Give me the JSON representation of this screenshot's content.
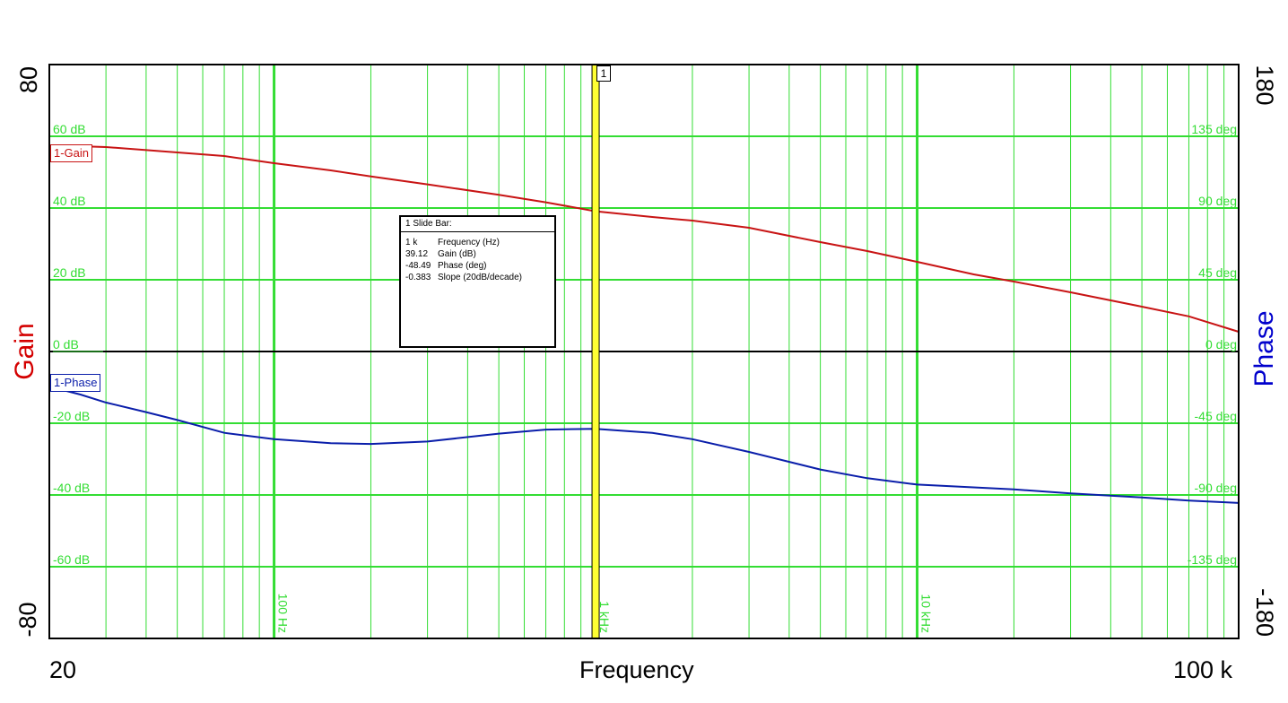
{
  "chart_data": {
    "type": "line",
    "xlabel": "Frequency",
    "x_scale": "log",
    "xlim": [
      20,
      100000
    ],
    "x_end_labels": [
      "20",
      "100 k"
    ],
    "x_decade_labels": [
      {
        "value": 100,
        "label": "100 Hz"
      },
      {
        "value": 1000,
        "label": "1 kHz"
      },
      {
        "value": 10000,
        "label": "10 kHz"
      }
    ],
    "left_axis": {
      "label": "Gain",
      "color": "#d40000",
      "ylim": [
        -80,
        80
      ],
      "end_labels": [
        "80",
        "-80"
      ],
      "ticks": [
        {
          "value": 60,
          "label": "60 dB"
        },
        {
          "value": 40,
          "label": "40 dB"
        },
        {
          "value": 20,
          "label": "20 dB"
        },
        {
          "value": 0,
          "label": "0 dB"
        },
        {
          "value": -20,
          "label": "-20 dB"
        },
        {
          "value": -40,
          "label": "-40 dB"
        },
        {
          "value": -60,
          "label": "-60 dB"
        }
      ]
    },
    "right_axis": {
      "label": "Phase",
      "color": "#0000cc",
      "ylim": [
        -180,
        180
      ],
      "end_labels": [
        "180",
        "-180"
      ],
      "ticks": [
        {
          "value": 135,
          "label": "135 deg"
        },
        {
          "value": 90,
          "label": "90 deg"
        },
        {
          "value": 45,
          "label": "45 deg"
        },
        {
          "value": 0,
          "label": "0 deg"
        },
        {
          "value": -45,
          "label": "-45 deg"
        },
        {
          "value": -90,
          "label": "-90 deg"
        },
        {
          "value": -135,
          "label": "-135 deg"
        }
      ]
    },
    "grid": true,
    "grid_color": "#33dd33",
    "series": [
      {
        "name": "1-Gain",
        "axis": "left",
        "color": "#c81414",
        "x": [
          20,
          30,
          50,
          70,
          100,
          150,
          200,
          300,
          500,
          700,
          1000,
          1500,
          2000,
          3000,
          5000,
          7000,
          10000,
          15000,
          20000,
          30000,
          50000,
          70000,
          100000
        ],
        "y": [
          57.5,
          57,
          55.5,
          54.5,
          52.5,
          50.5,
          48.8,
          46.6,
          43.7,
          41.6,
          39.1,
          37.5,
          36.5,
          34.5,
          30.5,
          28,
          25,
          21.5,
          19.5,
          16.5,
          12.5,
          9.8,
          5.5
        ]
      },
      {
        "name": "1-Phase",
        "axis": "right",
        "color": "#0a1eaa",
        "x": [
          20,
          25,
          30,
          40,
          50,
          70,
          100,
          150,
          200,
          300,
          500,
          700,
          1000,
          1500,
          2000,
          3000,
          5000,
          7000,
          10000,
          20000,
          30000,
          50000,
          70000,
          100000
        ],
        "y": [
          -22,
          -27,
          -32,
          -38,
          -43,
          -51,
          -55,
          -57.5,
          -58,
          -56.5,
          -51.5,
          -49,
          -48.5,
          -51,
          -55,
          -63,
          -74,
          -79.5,
          -83.5,
          -86.5,
          -89,
          -91.5,
          -93.5,
          -95
        ]
      }
    ],
    "cursor": {
      "id": "1",
      "x": 1000,
      "color": "#ffff33"
    },
    "readout": {
      "title": "1  Slide Bar:",
      "rows": [
        {
          "value": "1 k",
          "label": "Frequency (Hz)"
        },
        {
          "value": "39.12",
          "label": "Gain (dB)"
        },
        {
          "value": "-48.49",
          "label": "Phase (deg)"
        },
        {
          "value": "-0.383",
          "label": "Slope (20dB/decade)"
        }
      ]
    }
  }
}
